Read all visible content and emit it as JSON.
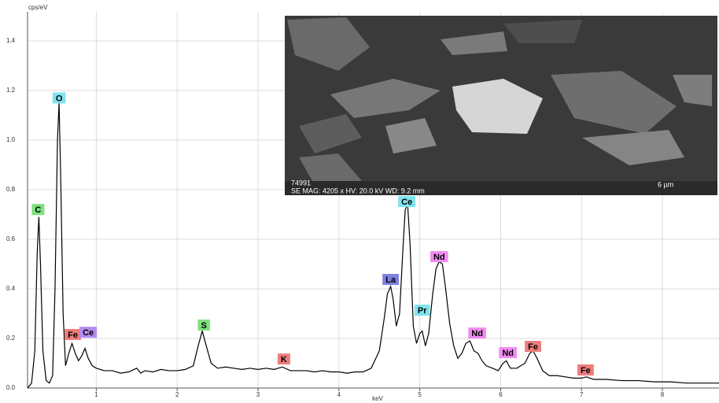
{
  "chart_data": {
    "type": "line",
    "ylabel": "cps/eV",
    "xlabel": "keV",
    "xlim": [
      0.15,
      8.7
    ],
    "ylim": [
      0,
      1.5
    ],
    "xticks": [
      1,
      2,
      3,
      4,
      5,
      6,
      7,
      8
    ],
    "yticks": [
      {
        "value": 0,
        "label": "0.0"
      },
      0.2,
      0.4,
      0.6,
      0.8,
      {
        "value": 1,
        "label": "1.0"
      },
      1.2,
      1.4
    ],
    "grid": true,
    "color": "#000000",
    "x": [
      0.15,
      0.2,
      0.24,
      0.27,
      0.29,
      0.31,
      0.34,
      0.38,
      0.42,
      0.46,
      0.49,
      0.52,
      0.54,
      0.56,
      0.59,
      0.62,
      0.66,
      0.7,
      0.74,
      0.78,
      0.82,
      0.86,
      0.9,
      0.95,
      1.0,
      1.1,
      1.2,
      1.3,
      1.4,
      1.5,
      1.55,
      1.6,
      1.7,
      1.8,
      1.9,
      2.0,
      2.1,
      2.2,
      2.26,
      2.31,
      2.36,
      2.42,
      2.5,
      2.6,
      2.7,
      2.8,
      2.9,
      3.0,
      3.1,
      3.2,
      3.3,
      3.4,
      3.5,
      3.6,
      3.7,
      3.8,
      3.9,
      4.0,
      4.1,
      4.2,
      4.3,
      4.4,
      4.5,
      4.56,
      4.6,
      4.64,
      4.67,
      4.71,
      4.75,
      4.79,
      4.82,
      4.85,
      4.88,
      4.92,
      4.96,
      5.0,
      5.03,
      5.07,
      5.11,
      5.16,
      5.2,
      5.24,
      5.28,
      5.32,
      5.37,
      5.42,
      5.47,
      5.52,
      5.57,
      5.62,
      5.67,
      5.72,
      5.77,
      5.82,
      5.9,
      5.97,
      6.03,
      6.07,
      6.12,
      6.2,
      6.3,
      6.36,
      6.4,
      6.45,
      6.52,
      6.6,
      6.7,
      6.8,
      6.9,
      7.0,
      7.06,
      7.15,
      7.3,
      7.5,
      7.7,
      7.9,
      8.1,
      8.3,
      8.5,
      8.7
    ],
    "values": [
      0.0,
      0.02,
      0.15,
      0.55,
      0.69,
      0.5,
      0.15,
      0.03,
      0.02,
      0.05,
      0.4,
      1.0,
      1.15,
      0.85,
      0.3,
      0.09,
      0.14,
      0.18,
      0.14,
      0.11,
      0.13,
      0.16,
      0.12,
      0.09,
      0.08,
      0.07,
      0.07,
      0.06,
      0.065,
      0.08,
      0.06,
      0.07,
      0.065,
      0.075,
      0.07,
      0.07,
      0.075,
      0.09,
      0.17,
      0.23,
      0.17,
      0.1,
      0.08,
      0.085,
      0.08,
      0.075,
      0.08,
      0.075,
      0.08,
      0.075,
      0.085,
      0.07,
      0.07,
      0.07,
      0.065,
      0.07,
      0.065,
      0.065,
      0.06,
      0.065,
      0.065,
      0.08,
      0.15,
      0.28,
      0.38,
      0.41,
      0.36,
      0.25,
      0.3,
      0.55,
      0.72,
      0.74,
      0.58,
      0.25,
      0.18,
      0.22,
      0.23,
      0.17,
      0.22,
      0.38,
      0.48,
      0.51,
      0.5,
      0.4,
      0.26,
      0.17,
      0.12,
      0.14,
      0.18,
      0.19,
      0.15,
      0.14,
      0.11,
      0.09,
      0.08,
      0.07,
      0.1,
      0.11,
      0.08,
      0.08,
      0.1,
      0.14,
      0.15,
      0.12,
      0.07,
      0.05,
      0.05,
      0.045,
      0.04,
      0.04,
      0.045,
      0.035,
      0.035,
      0.03,
      0.03,
      0.025,
      0.025,
      0.02,
      0.02,
      0.02
    ],
    "annotations": [
      {
        "text": "C",
        "x": 0.28,
        "y": 0.72,
        "color": "#7ee07e"
      },
      {
        "text": "O",
        "x": 0.54,
        "y": 1.17,
        "color": "#7fe3ef"
      },
      {
        "text": "Fe",
        "x": 0.71,
        "y": 0.216,
        "color": "#ef7d7d"
      },
      {
        "text": "Ce",
        "x": 0.9,
        "y": 0.225,
        "color": "#b48cf0"
      },
      {
        "text": "S",
        "x": 2.33,
        "y": 0.254,
        "color": "#7ee07e"
      },
      {
        "text": "K",
        "x": 3.32,
        "y": 0.117,
        "color": "#ef7d7d"
      },
      {
        "text": "La",
        "x": 4.64,
        "y": 0.438,
        "color": "#8080e0"
      },
      {
        "text": "Ce",
        "x": 4.84,
        "y": 0.752,
        "color": "#7fe3ef"
      },
      {
        "text": "Pr",
        "x": 5.03,
        "y": 0.314,
        "color": "#7fe3ef"
      },
      {
        "text": "Nd",
        "x": 5.24,
        "y": 0.53,
        "color": "#f08cf0"
      },
      {
        "text": "Nd",
        "x": 5.71,
        "y": 0.222,
        "color": "#f08cf0"
      },
      {
        "text": "Nd",
        "x": 6.09,
        "y": 0.143,
        "color": "#f08cf0"
      },
      {
        "text": "Fe",
        "x": 6.4,
        "y": 0.168,
        "color": "#ef7d7d"
      },
      {
        "text": "Fe",
        "x": 7.05,
        "y": 0.073,
        "color": "#ef7d7d"
      }
    ]
  },
  "inset": {
    "id": "74991",
    "info": "SE  MAG: 4205 x  HV: 20.0 kV  WD: 9.2 mm",
    "scale": "6 µm"
  }
}
